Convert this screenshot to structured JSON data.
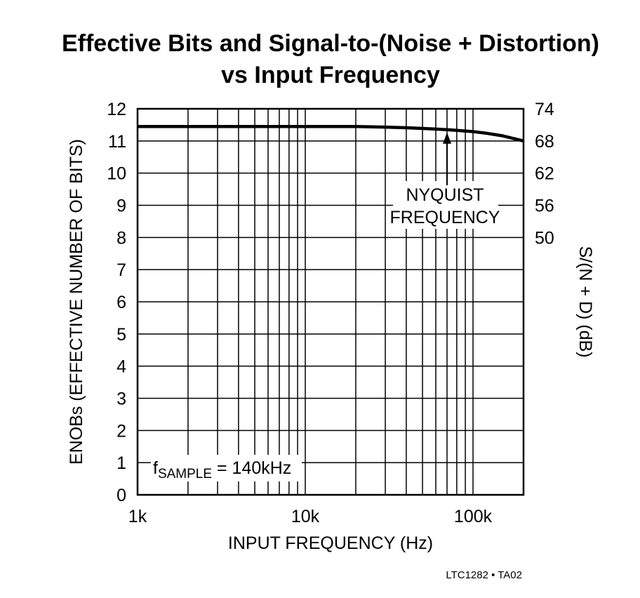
{
  "chart_data": {
    "type": "line",
    "title": "Effective Bits and Signal-to-(Noise + Distortion)",
    "subtitle": "vs Input Frequency",
    "xlabel": "INPUT FREQUENCY (Hz)",
    "ylabel": "ENOBs (EFFECTIVE NUMBER OF BITS)",
    "y2label": "S/(N + D) (dB)",
    "xscale": "log",
    "xlim": [
      1000,
      200000
    ],
    "ylim": [
      0,
      12
    ],
    "x_tick_labels": [
      "1k",
      "10k",
      "100k"
    ],
    "x_tick_values": [
      1000,
      10000,
      100000
    ],
    "y_ticks": [
      0,
      1,
      2,
      3,
      4,
      5,
      6,
      7,
      8,
      9,
      10,
      11,
      12
    ],
    "y2_ticks": [
      {
        "label": "74",
        "enob": 12
      },
      {
        "label": "68",
        "enob": 11
      },
      {
        "label": "62",
        "enob": 10
      },
      {
        "label": "56",
        "enob": 9
      },
      {
        "label": "50",
        "enob": 8
      }
    ],
    "grid": true,
    "series": [
      {
        "x": [
          1000,
          3000,
          10000,
          20000,
          30000,
          40000,
          50000,
          60000,
          70000,
          80000,
          100000,
          120000,
          150000,
          200000
        ],
        "y": [
          11.45,
          11.45,
          11.45,
          11.45,
          11.43,
          11.41,
          11.39,
          11.37,
          11.35,
          11.33,
          11.29,
          11.24,
          11.16,
          11.0
        ]
      }
    ],
    "annotations": {
      "nyquist": {
        "line1": "NYQUIST",
        "line2": "FREQUENCY",
        "x": 70000,
        "y": 11.33
      },
      "fsample": {
        "f": "f",
        "sub": "SAMPLE",
        "rest": " = 140kHz"
      }
    },
    "footnote": "LTC1282 • TA02",
    "colors": {
      "line": "#000000",
      "grid": "#000000",
      "background": "#ffffff"
    }
  }
}
